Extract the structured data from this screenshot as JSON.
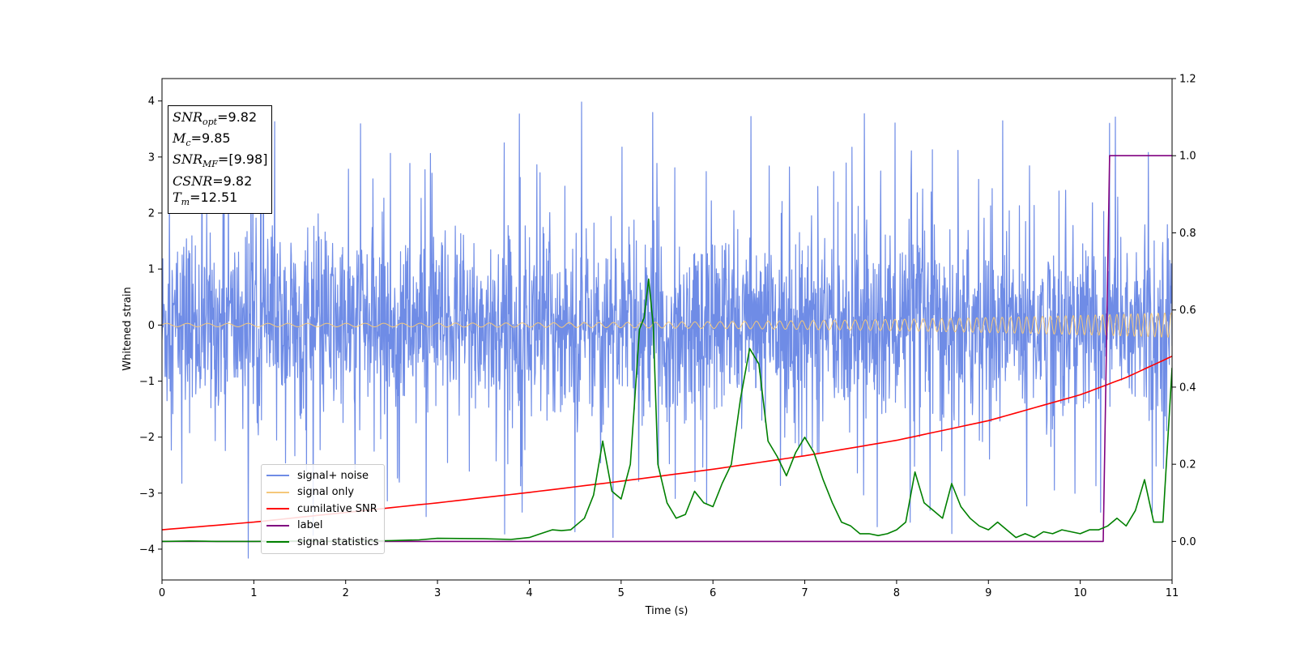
{
  "chart_data": {
    "type": "line",
    "title": "",
    "xlabel": "Time (s)",
    "ylabel": "Whitened strain",
    "ylabel_right": "",
    "xlim": [
      0,
      11
    ],
    "ylim": [
      -4.55,
      4.4
    ],
    "ylim_right": [
      -0.1,
      1.2
    ],
    "grid": false,
    "legend_position": "lower-left",
    "x_ticks": [
      0,
      1,
      2,
      3,
      4,
      5,
      6,
      7,
      8,
      9,
      10,
      11
    ],
    "y_ticks": [
      -4,
      -3,
      -2,
      -1,
      0,
      1,
      2,
      3,
      4
    ],
    "y_ticks_right": [
      0.0,
      0.2,
      0.4,
      0.6,
      0.8,
      1.0,
      1.2
    ],
    "annotation_box": [
      {
        "sym": "SNR",
        "sub": "opt",
        "value": "=9.82"
      },
      {
        "sym": "M",
        "sub": "c",
        "value": "=9.85"
      },
      {
        "sym": "SNR",
        "sub": "MF",
        "value": "=[9.98]"
      },
      {
        "sym": "CSNR",
        "sub": "",
        "value": "=9.82"
      },
      {
        "sym": "T",
        "sub": "m",
        "value": "=12.51"
      }
    ],
    "series": [
      {
        "name": "signal+ noise",
        "color": "#6f8ce6",
        "axis": "left",
        "kind": "noise",
        "sigma": 0.85,
        "extremes": {
          "max": 3.98,
          "min": -4.16
        }
      },
      {
        "name": "signal only",
        "color": "#f5c87a",
        "axis": "left",
        "kind": "chirp",
        "amplitude_start": 0.03,
        "amplitude_end": 0.22,
        "freq_start_hz": 4.5,
        "freq_end_hz": 14
      },
      {
        "name": "cumilative SNR",
        "color": "#ff0000",
        "axis": "right",
        "x": [
          0,
          1,
          2,
          3,
          4,
          5,
          6,
          7,
          8,
          9,
          10,
          10.5,
          11
        ],
        "values": [
          0.03,
          0.05,
          0.075,
          0.1,
          0.127,
          0.156,
          0.187,
          0.222,
          0.262,
          0.313,
          0.38,
          0.425,
          0.48
        ]
      },
      {
        "name": "label",
        "color": "#800080",
        "axis": "right",
        "x": [
          0,
          10.25,
          10.32,
          11
        ],
        "values": [
          0.0,
          0.0,
          1.0,
          1.0
        ]
      },
      {
        "name": "signal statistics",
        "color": "#008000",
        "axis": "right",
        "x": [
          0,
          0.3,
          0.6,
          1.0,
          1.5,
          2.0,
          2.5,
          2.8,
          3.0,
          3.5,
          3.8,
          4.0,
          4.1,
          4.25,
          4.35,
          4.45,
          4.6,
          4.7,
          4.8,
          4.9,
          5.0,
          5.1,
          5.2,
          5.25,
          5.3,
          5.35,
          5.4,
          5.5,
          5.6,
          5.7,
          5.8,
          5.9,
          6.0,
          6.1,
          6.2,
          6.3,
          6.4,
          6.5,
          6.6,
          6.7,
          6.8,
          6.9,
          7.0,
          7.1,
          7.2,
          7.3,
          7.4,
          7.5,
          7.6,
          7.7,
          7.8,
          7.9,
          8.0,
          8.1,
          8.2,
          8.3,
          8.4,
          8.5,
          8.6,
          8.7,
          8.8,
          8.9,
          9.0,
          9.1,
          9.2,
          9.3,
          9.4,
          9.5,
          9.6,
          9.7,
          9.8,
          9.9,
          10.0,
          10.1,
          10.2,
          10.3,
          10.4,
          10.5,
          10.6,
          10.7,
          10.8,
          10.9,
          11.0
        ],
        "values": [
          0.0,
          0.001,
          0.0,
          0.0,
          0.001,
          0.0,
          0.002,
          0.004,
          0.008,
          0.007,
          0.005,
          0.01,
          0.018,
          0.03,
          0.028,
          0.03,
          0.06,
          0.12,
          0.26,
          0.13,
          0.11,
          0.2,
          0.55,
          0.58,
          0.68,
          0.56,
          0.2,
          0.1,
          0.06,
          0.07,
          0.13,
          0.1,
          0.09,
          0.15,
          0.2,
          0.37,
          0.5,
          0.46,
          0.26,
          0.22,
          0.17,
          0.23,
          0.27,
          0.23,
          0.16,
          0.1,
          0.05,
          0.04,
          0.02,
          0.02,
          0.015,
          0.02,
          0.03,
          0.05,
          0.18,
          0.1,
          0.08,
          0.06,
          0.15,
          0.09,
          0.06,
          0.04,
          0.03,
          0.05,
          0.03,
          0.01,
          0.02,
          0.01,
          0.025,
          0.02,
          0.03,
          0.025,
          0.02,
          0.03,
          0.03,
          0.04,
          0.06,
          0.04,
          0.08,
          0.16,
          0.05,
          0.05,
          0.45
        ]
      }
    ]
  }
}
